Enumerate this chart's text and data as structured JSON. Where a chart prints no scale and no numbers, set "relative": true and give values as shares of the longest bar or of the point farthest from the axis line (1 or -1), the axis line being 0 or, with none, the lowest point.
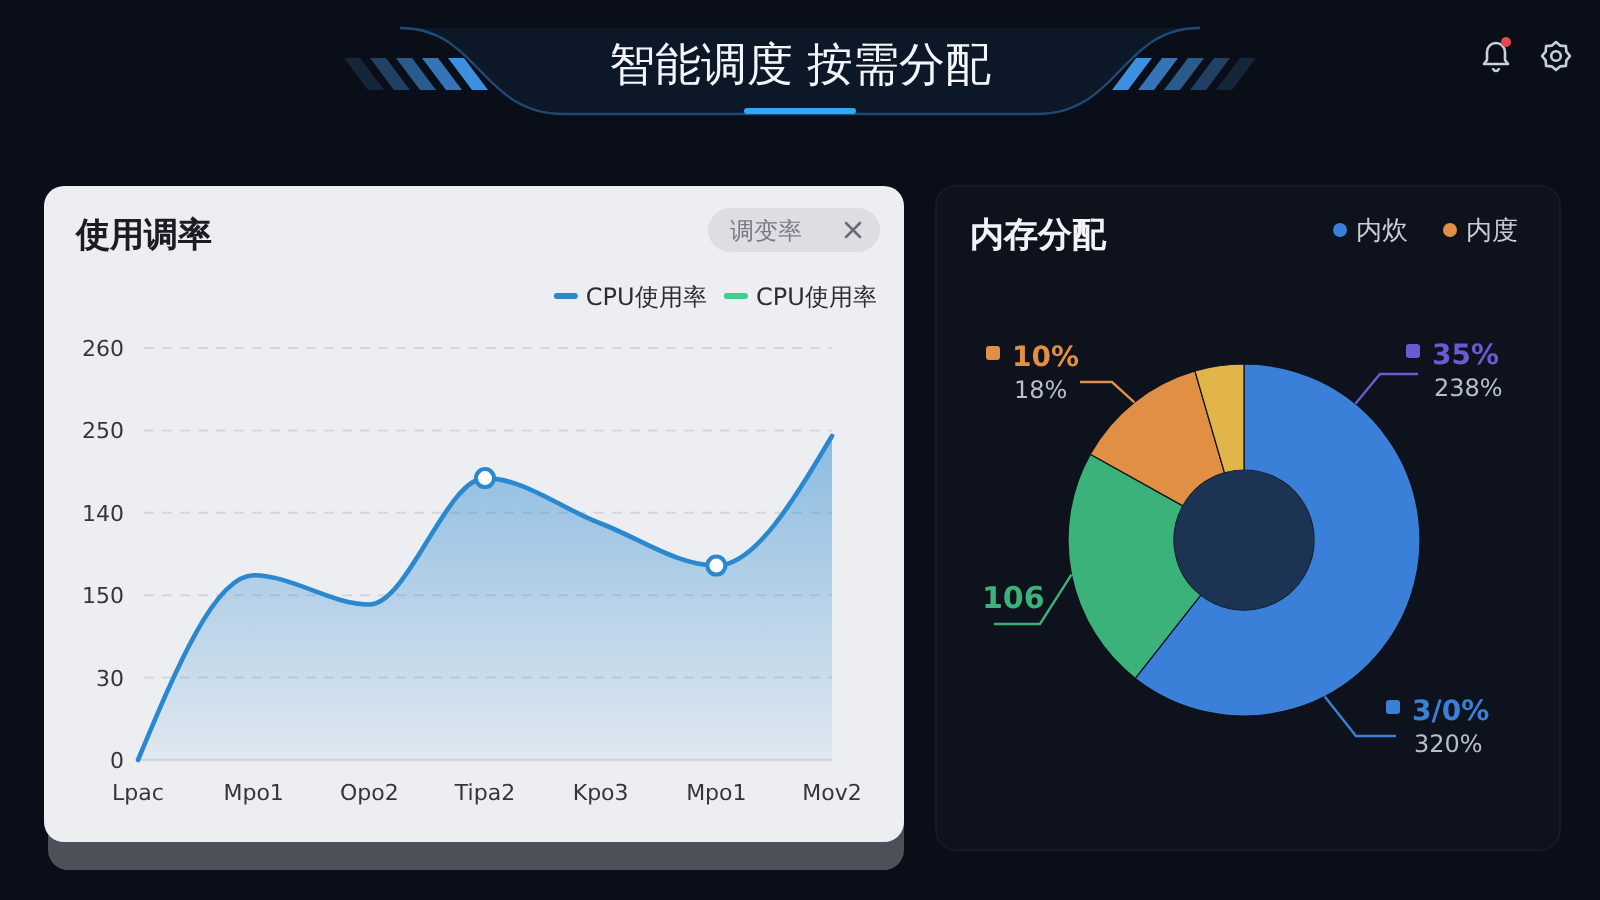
{
  "chart_data": [
    {
      "type": "other",
      "title": "智能调度 按需分配"
    },
    {
      "type": "area",
      "title": "使用调率",
      "categories": [
        "Lpac",
        "Mpo1",
        "Opo2",
        "Tipa2",
        "Kpo3",
        "Mpo1",
        "Mov2"
      ],
      "relative": true,
      "series": [
        {
          "name": "CPU使用率",
          "color": "#2a88cf",
          "values": [
            0,
            0.57,
            0.48,
            0.87,
            0.73,
            0.6,
            1
          ]
        },
        {
          "name": "CPU使用率",
          "type": "line",
          "color": "#3ecf8e",
          "values": [
            null,
            null,
            null,
            null,
            null,
            null,
            null
          ]
        },
        {
          "type": "scatter",
          "color": "#2a88cf",
          "values": [
            null,
            null,
            null,
            0.87,
            null,
            0.6,
            null
          ]
        }
      ],
      "grid": "y",
      "legend": "top right",
      "annotations": [
        "调变率",
        "260",
        "250",
        "140",
        "150",
        "30",
        "0"
      ]
    },
    {
      "type": "donut",
      "title": "内存分配",
      "categories": [
        "内炊",
        null,
        "内度",
        null
      ],
      "values": [
        60.6,
        22.5,
        12.4,
        4.5
      ],
      "colors": [
        "#3a80d8",
        "#3bb27a",
        "#e08f45",
        "#e2b54a"
      ],
      "legend": "top right",
      "annotations": [
        "10%",
        "18%",
        "35%",
        "238%",
        "106",
        "3/0%",
        "320%"
      ]
    }
  ]
}
